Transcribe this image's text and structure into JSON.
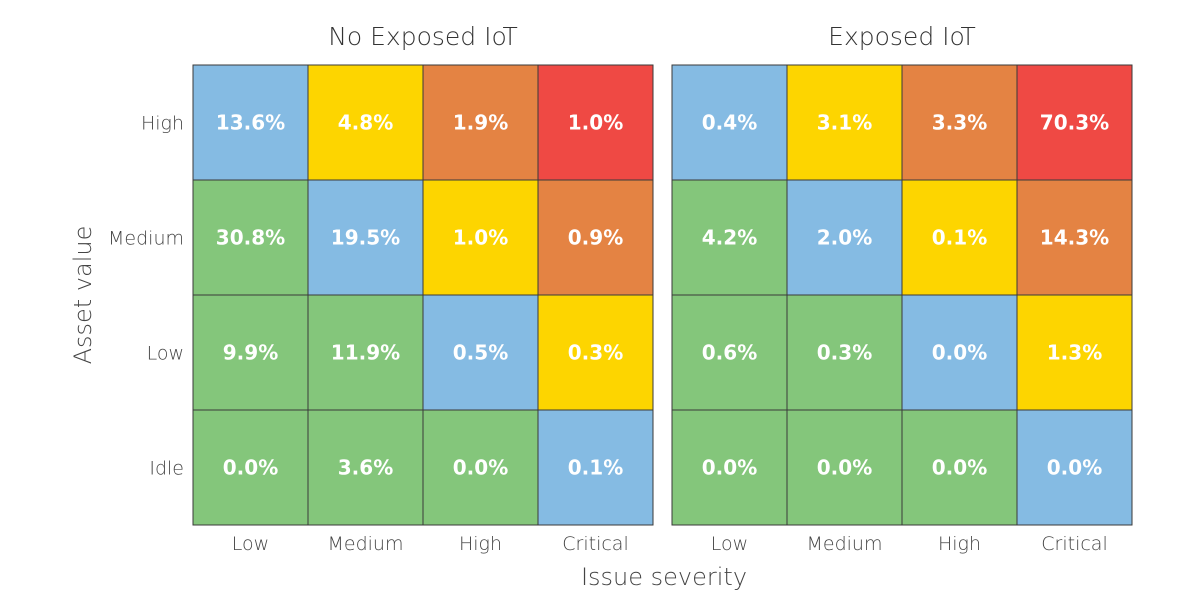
{
  "chart_data": {
    "type": "heatmap",
    "xlabel": "Issue severity",
    "ylabel": "Asset value",
    "x_categories": [
      "Low",
      "Medium",
      "High",
      "Critical"
    ],
    "y_categories": [
      "High",
      "Medium",
      "Low",
      "Idle"
    ],
    "colors": {
      "blue": "#85bbe3",
      "yellow": "#fdd500",
      "orange": "#e48343",
      "red": "#ef4944",
      "green": "#84c67b"
    },
    "color_grid": [
      [
        "blue",
        "yellow",
        "orange",
        "red"
      ],
      [
        "green",
        "blue",
        "yellow",
        "orange"
      ],
      [
        "green",
        "green",
        "blue",
        "yellow"
      ],
      [
        "green",
        "green",
        "green",
        "blue"
      ]
    ],
    "panels": [
      {
        "title": "No Exposed IoT",
        "values": [
          [
            "13.6%",
            "4.8%",
            "1.9%",
            "1.0%"
          ],
          [
            "30.8%",
            "19.5%",
            "1.0%",
            "0.9%"
          ],
          [
            "9.9%",
            "11.9%",
            "0.5%",
            "0.3%"
          ],
          [
            "0.0%",
            "3.6%",
            "0.0%",
            "0.1%"
          ]
        ]
      },
      {
        "title": "Exposed IoT",
        "values": [
          [
            "0.4%",
            "3.1%",
            "3.3%",
            "70.3%"
          ],
          [
            "4.2%",
            "2.0%",
            "0.1%",
            "14.3%"
          ],
          [
            "0.6%",
            "0.3%",
            "0.0%",
            "1.3%"
          ],
          [
            "0.0%",
            "0.0%",
            "0.0%",
            "0.0%"
          ]
        ]
      }
    ]
  }
}
